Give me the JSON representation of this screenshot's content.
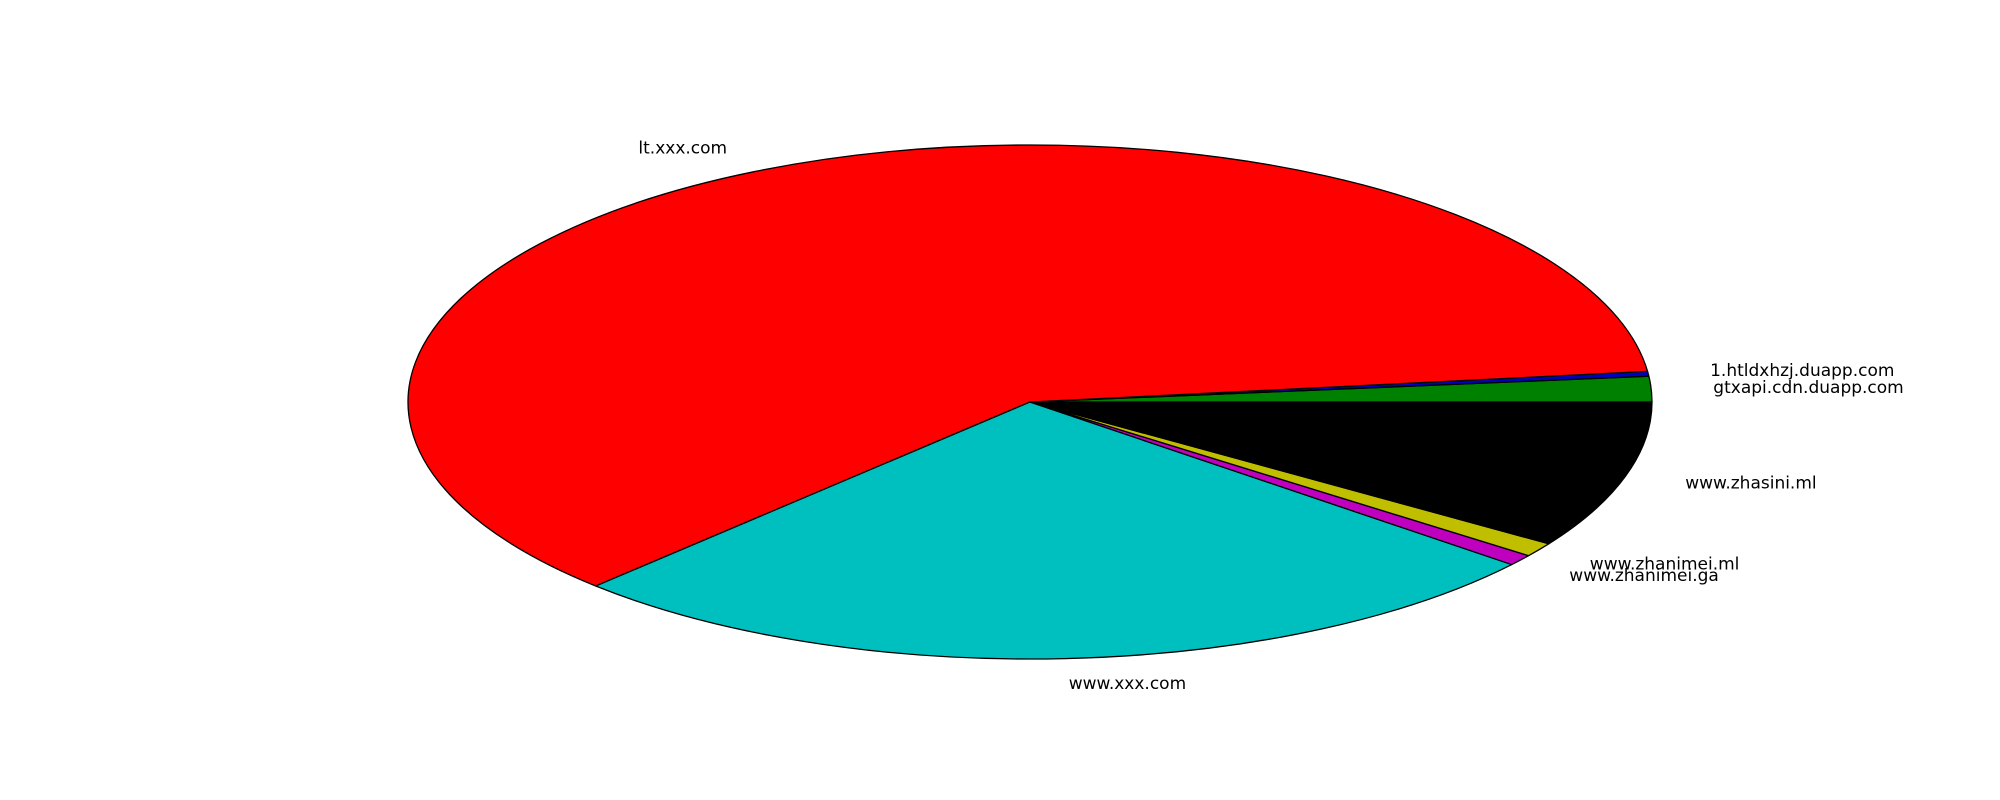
{
  "chart_data": {
    "type": "pie",
    "title": "",
    "start_angle_deg": 0,
    "direction": "counterclockwise",
    "slices": [
      {
        "label": "gtxapi.cdn.duapp.com",
        "value": 1.6,
        "color": "#008000"
      },
      {
        "label": "1.htldxhzj.duapp.com",
        "value": 0.3,
        "color": "#0000bf"
      },
      {
        "label": "lt.xxx.com",
        "value": 60.8,
        "color": "#ff0000"
      },
      {
        "label": "www.xxx.com",
        "value": 26.4,
        "color": "#00bfbf"
      },
      {
        "label": "www.zhanimei.ga",
        "value": 0.7,
        "color": "#bf00bf"
      },
      {
        "label": "www.zhanimei.ml",
        "value": 0.9,
        "color": "#bfbf00"
      },
      {
        "label": "www.zhasini.ml",
        "value": 9.3,
        "color": "#000000"
      }
    ],
    "edge_color": "#000000",
    "legend": "none"
  }
}
